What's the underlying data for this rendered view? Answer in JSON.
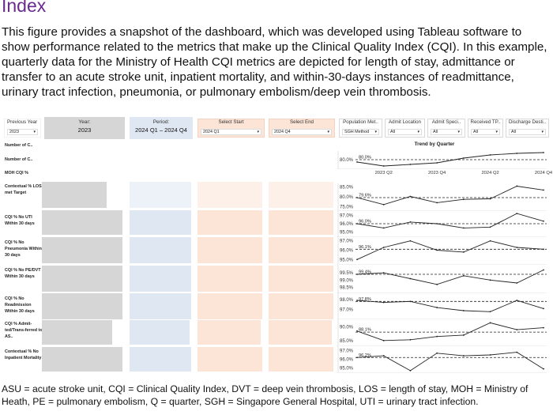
{
  "heading": "Index",
  "intro": "This figure provides a snapshot of the dashboard, which was developed using Tableau software to show performance related to the metrics that make up the Clinical Quality Index (CQI). In this example, quarterly data for the Ministry of Health CQI metrics are depicted for length of stay, admittance or transfer to an acute stroke unit, inpatient mortality, and within-30-days instances of readmittance, urinary tract infection, pneumonia, or pulmonary embolism/deep vein thrombosis.",
  "filters": {
    "previous_year": {
      "label": "Previous Year",
      "value": "2023"
    },
    "year": {
      "label": "Year:",
      "value": "2023"
    },
    "period": {
      "label": "Period:",
      "value": "2024 Q1 – 2024 Q4"
    },
    "select_start": {
      "label": "Select Start",
      "value": "2024 Q1"
    },
    "select_end": {
      "label": "Select End",
      "value": "2024 Q4"
    },
    "population": {
      "label": "Population Met..",
      "value": "SGH Method"
    },
    "admit_location": {
      "label": "Admit Location",
      "value": "All"
    },
    "admit_specialty": {
      "label": "Admit Speci..",
      "value": "All"
    },
    "received_tp": {
      "label": "Received TP..",
      "value": "All"
    },
    "discharge_dest": {
      "label": "Discharge Desti..",
      "value": "All"
    }
  },
  "row_labels": {
    "num1": "Number of C..",
    "num2": "Number of C..",
    "moh": "MOH CQI %",
    "los": "Contextual % LOS met Target",
    "uti": "CQI % No UTI Within 30 days",
    "pneu": "CQI % No Pneumonia Within 30 days",
    "pe": "CQI % No PE/DVT Within 30 days",
    "readm": "CQI % No Readmission Within 30 days",
    "asu": "CQI % Admit-ted/Trans-ferred to AS..",
    "mort": "Contextual % No Inpatient Mortality"
  },
  "bar_fractions": {
    "los": [
      0.8,
      0.0,
      0.0
    ],
    "uti": [
      1.0,
      1.0,
      1.0
    ],
    "pneu": [
      1.0,
      1.0,
      1.0
    ],
    "pe": [
      1.0,
      1.0,
      1.0
    ],
    "readm": [
      1.0,
      1.0,
      1.0
    ],
    "asu": [
      0.87,
      0.97,
      0.97
    ],
    "mort": [
      1.0,
      1.0,
      1.0
    ]
  },
  "colors": {
    "heading": "#6a2a8e",
    "grey_bar": "#d6d6d6",
    "blue_bar": "#dfe7f2",
    "orange_bar": "#fce4d6",
    "line": "#222222"
  },
  "chart_data": {
    "type": "line",
    "title": "Trend by Quarter",
    "x": [
      "2023 Q1",
      "2023 Q2",
      "2023 Q3",
      "2023 Q4",
      "2024 Q1",
      "2024 Q2",
      "2024 Q3",
      "2024 Q4"
    ],
    "x_tick_labels": [
      "2023 Q2",
      "2023 Q4",
      "2024 Q2",
      "2024 Q4"
    ],
    "panels": [
      {
        "id": "moh",
        "yticks": [
          "80.0%"
        ],
        "ylim": [
          79.0,
          81.0
        ],
        "ref": 80.0,
        "ref_label": "80.0%",
        "values": [
          79.7,
          79.2,
          79.4,
          79.6,
          80.2,
          80.6,
          80.8,
          80.9
        ]
      },
      {
        "id": "los",
        "yticks": [
          "85.0%",
          "80.0%",
          "75.0%"
        ],
        "ylim": [
          73.5,
          86.5
        ],
        "ref": 79.6,
        "ref_label": "79.6%",
        "values": [
          79.6,
          76.0,
          80.2,
          77.0,
          78.7,
          79.0,
          85.5,
          83.5
        ]
      },
      {
        "id": "uti",
        "yticks": [
          "97.0%",
          "96.0%",
          "95.0%"
        ],
        "ylim": [
          94.6,
          97.4
        ],
        "ref": 96.0,
        "ref_label": "96.0%",
        "values": [
          96.0,
          95.5,
          96.2,
          96.0,
          95.5,
          95.6,
          97.2,
          96.3
        ]
      },
      {
        "id": "pneu",
        "yticks": [
          "97.0%",
          "96.0%",
          "95.0%"
        ],
        "ylim": [
          94.6,
          97.4
        ],
        "ref": 96.1,
        "ref_label": "96.1%",
        "values": [
          95.0,
          96.3,
          97.0,
          96.0,
          95.8,
          97.0,
          96.3,
          96.1
        ]
      },
      {
        "id": "pe",
        "yticks": [
          "99.5%",
          "99.0%",
          "98.5%"
        ],
        "ylim": [
          98.2,
          100.0
        ],
        "ref": 99.4,
        "ref_label": "99.4%",
        "values": [
          99.4,
          99.5,
          99.1,
          98.7,
          99.3,
          99.0,
          98.8,
          99.7
        ]
      },
      {
        "id": "readm",
        "yticks": [
          "98.0%",
          "97.0%"
        ],
        "ylim": [
          96.2,
          98.6
        ],
        "ref": 97.8,
        "ref_label": "97.8%",
        "values": [
          97.9,
          97.7,
          97.8,
          97.2,
          96.9,
          96.8,
          97.9,
          97.1
        ]
      },
      {
        "id": "asu",
        "yticks": [
          "90.0%",
          "85.0%"
        ],
        "ylim": [
          83.5,
          92.5
        ],
        "ref": 88.1,
        "ref_label": "88.1%",
        "values": [
          88.5,
          85.0,
          85.3,
          86.5,
          87.0,
          91.5,
          89.0,
          89.7
        ]
      },
      {
        "id": "mort",
        "yticks": [
          "97.0%",
          "96.0%",
          "95.0%"
        ],
        "ylim": [
          94.6,
          97.4
        ],
        "ref": 96.2,
        "ref_label": "96.2%",
        "values": [
          96.2,
          96.4,
          94.7,
          96.7,
          96.4,
          96.5,
          96.8,
          94.9
        ]
      }
    ]
  },
  "footnote": "ASU = acute stroke unit, CQI = Clinical Quality Index, DVT = deep vein thrombosis, LOS = length of stay, MOH = Ministry of Heath, PE = pulmonary embolism, Q = quarter, SGH = Singapore General Hospital, UTI = urinary tract infection."
}
